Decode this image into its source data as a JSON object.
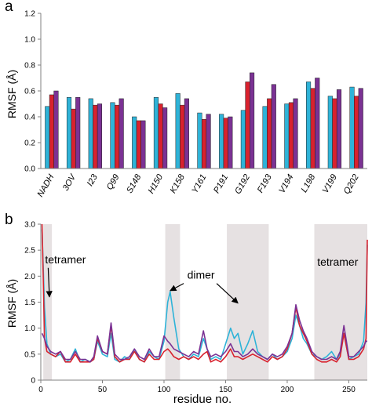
{
  "colors": {
    "cyan": "#2eb3d8",
    "red": "#d8222e",
    "purple": "#7b3294",
    "shade": "#e6e1e2",
    "axis": "#808080"
  },
  "chart_data": [
    {
      "type": "bar",
      "panel_label": "a",
      "ylabel": "RMSF (Å)",
      "xlabel": "",
      "ylim": [
        0,
        1.2
      ],
      "yticks": [
        "0.0",
        "0.2",
        "0.4",
        "0.6",
        "0.8",
        "1.0",
        "1.2"
      ],
      "categories": [
        "NADH",
        "3OV",
        "I23",
        "Q99",
        "S148",
        "H150",
        "K158",
        "Y161",
        "P191",
        "G192",
        "F193",
        "V194",
        "L198",
        "V199",
        "Q202"
      ],
      "series": [
        {
          "color": "#2eb3d8",
          "values": [
            0.48,
            0.55,
            0.54,
            0.51,
            0.4,
            0.55,
            0.58,
            0.43,
            0.42,
            0.45,
            0.48,
            0.5,
            0.67,
            0.56,
            0.63
          ]
        },
        {
          "color": "#d8222e",
          "values": [
            0.57,
            0.46,
            0.49,
            0.49,
            0.37,
            0.5,
            0.49,
            0.38,
            0.39,
            0.67,
            0.54,
            0.51,
            0.62,
            0.54,
            0.56
          ]
        },
        {
          "color": "#7b3294",
          "values": [
            0.6,
            0.55,
            0.5,
            0.54,
            0.37,
            0.47,
            0.54,
            0.42,
            0.4,
            0.74,
            0.65,
            0.54,
            0.7,
            0.61,
            0.62
          ]
        }
      ],
      "grid": false
    },
    {
      "type": "line",
      "panel_label": "b",
      "ylabel": "RMSF (Å)",
      "xlabel": "residue no.",
      "xlim": [
        0,
        265
      ],
      "ylim": [
        0,
        3.0
      ],
      "xticks": [
        "0",
        "50",
        "100",
        "150",
        "200",
        "250"
      ],
      "yticks": [
        "0",
        "0.5",
        "1.0",
        "1.5",
        "2.0",
        "2.5",
        "3.0"
      ],
      "shaded_regions": [
        [
          2,
          9
        ],
        [
          101,
          113
        ],
        [
          151,
          185
        ],
        [
          222,
          265
        ]
      ],
      "annotations": [
        {
          "text": "tetramer",
          "x": 20,
          "y": 2.25,
          "arrow_to": [
            7,
            1.6
          ]
        },
        {
          "text": "dimer",
          "x": 130,
          "y": 1.95,
          "arrow_to": [
            [
              105,
              1.72
            ],
            [
              160,
              1.48
            ]
          ]
        },
        {
          "text": "tetramer",
          "x": 241,
          "y": 2.2
        }
      ],
      "series": [
        {
          "color": "#2eb3d8",
          "x": [
            1,
            3,
            5,
            8,
            12,
            16,
            20,
            24,
            28,
            32,
            36,
            40,
            43,
            46,
            50,
            54,
            57,
            60,
            64,
            68,
            72,
            76,
            80,
            84,
            88,
            92,
            96,
            100,
            103,
            105,
            108,
            112,
            116,
            120,
            124,
            128,
            132,
            135,
            138,
            142,
            146,
            150,
            154,
            157,
            160,
            164,
            168,
            172,
            176,
            180,
            184,
            188,
            192,
            196,
            200,
            204,
            207,
            210,
            213,
            216,
            220,
            224,
            228,
            232,
            236,
            240,
            243,
            246,
            250,
            254,
            258,
            262,
            264,
            265
          ],
          "y": [
            2.9,
            1.4,
            0.7,
            0.5,
            0.45,
            0.5,
            0.35,
            0.4,
            0.6,
            0.35,
            0.4,
            0.35,
            0.4,
            0.75,
            0.5,
            0.45,
            0.9,
            0.4,
            0.35,
            0.45,
            0.4,
            0.6,
            0.4,
            0.35,
            0.55,
            0.45,
            0.4,
            0.75,
            1.5,
            1.7,
            1.2,
            0.6,
            0.45,
            0.4,
            0.5,
            0.45,
            0.8,
            0.6,
            0.4,
            0.45,
            0.4,
            0.7,
            1.0,
            0.8,
            0.9,
            0.5,
            0.7,
            0.95,
            0.55,
            0.45,
            0.4,
            0.5,
            0.4,
            0.45,
            0.55,
            0.8,
            1.25,
            1.05,
            0.8,
            0.7,
            0.5,
            0.45,
            0.4,
            0.45,
            0.55,
            0.4,
            0.5,
            0.9,
            0.4,
            0.45,
            0.5,
            0.75,
            1.5,
            2.6
          ]
        },
        {
          "color": "#d8222e",
          "x": [
            1,
            3,
            5,
            8,
            12,
            16,
            20,
            24,
            28,
            32,
            36,
            40,
            43,
            46,
            50,
            54,
            57,
            60,
            64,
            68,
            72,
            76,
            80,
            84,
            88,
            92,
            96,
            100,
            103,
            105,
            108,
            112,
            116,
            120,
            124,
            128,
            132,
            135,
            138,
            142,
            146,
            150,
            154,
            157,
            160,
            164,
            168,
            172,
            176,
            180,
            184,
            188,
            192,
            196,
            200,
            204,
            207,
            210,
            213,
            216,
            220,
            224,
            228,
            232,
            236,
            240,
            243,
            246,
            250,
            254,
            258,
            262,
            264,
            265
          ],
          "y": [
            3.0,
            0.8,
            0.55,
            0.5,
            0.45,
            0.55,
            0.35,
            0.35,
            0.5,
            0.35,
            0.35,
            0.35,
            0.4,
            0.8,
            0.55,
            0.5,
            1.05,
            0.45,
            0.35,
            0.4,
            0.4,
            0.55,
            0.4,
            0.35,
            0.5,
            0.4,
            0.4,
            0.55,
            0.6,
            0.55,
            0.45,
            0.4,
            0.45,
            0.4,
            0.45,
            0.4,
            0.5,
            0.55,
            0.35,
            0.4,
            0.35,
            0.45,
            0.6,
            0.45,
            0.45,
            0.4,
            0.45,
            0.5,
            0.45,
            0.4,
            0.35,
            0.45,
            0.4,
            0.45,
            0.6,
            0.9,
            1.4,
            1.05,
            0.9,
            0.75,
            0.5,
            0.4,
            0.35,
            0.35,
            0.4,
            0.35,
            0.45,
            0.9,
            0.4,
            0.4,
            0.45,
            0.6,
            0.8,
            2.7
          ]
        },
        {
          "color": "#7b3294",
          "x": [
            1,
            3,
            5,
            8,
            12,
            16,
            20,
            24,
            28,
            32,
            36,
            40,
            43,
            46,
            50,
            54,
            57,
            60,
            64,
            68,
            72,
            76,
            80,
            84,
            88,
            92,
            96,
            100,
            103,
            105,
            108,
            112,
            116,
            120,
            124,
            128,
            132,
            135,
            138,
            142,
            146,
            150,
            154,
            157,
            160,
            164,
            168,
            172,
            176,
            180,
            184,
            188,
            192,
            196,
            200,
            204,
            207,
            210,
            213,
            216,
            220,
            224,
            228,
            232,
            236,
            240,
            243,
            246,
            250,
            254,
            258,
            262,
            264,
            265
          ],
          "y": [
            0.9,
            0.8,
            0.65,
            0.55,
            0.5,
            0.55,
            0.4,
            0.4,
            0.55,
            0.4,
            0.4,
            0.35,
            0.45,
            0.85,
            0.55,
            0.5,
            1.1,
            0.5,
            0.4,
            0.4,
            0.45,
            0.6,
            0.45,
            0.4,
            0.6,
            0.45,
            0.45,
            0.85,
            0.75,
            0.7,
            0.6,
            0.55,
            0.5,
            0.45,
            0.55,
            0.5,
            0.95,
            0.6,
            0.45,
            0.5,
            0.45,
            0.55,
            0.7,
            0.55,
            0.55,
            0.45,
            0.5,
            0.6,
            0.5,
            0.45,
            0.4,
            0.5,
            0.45,
            0.5,
            0.65,
            0.9,
            1.45,
            1.15,
            0.95,
            0.8,
            0.55,
            0.45,
            0.4,
            0.4,
            0.45,
            0.4,
            0.55,
            1.05,
            0.45,
            0.45,
            0.55,
            0.65,
            0.75,
            0.75
          ]
        }
      ]
    }
  ]
}
